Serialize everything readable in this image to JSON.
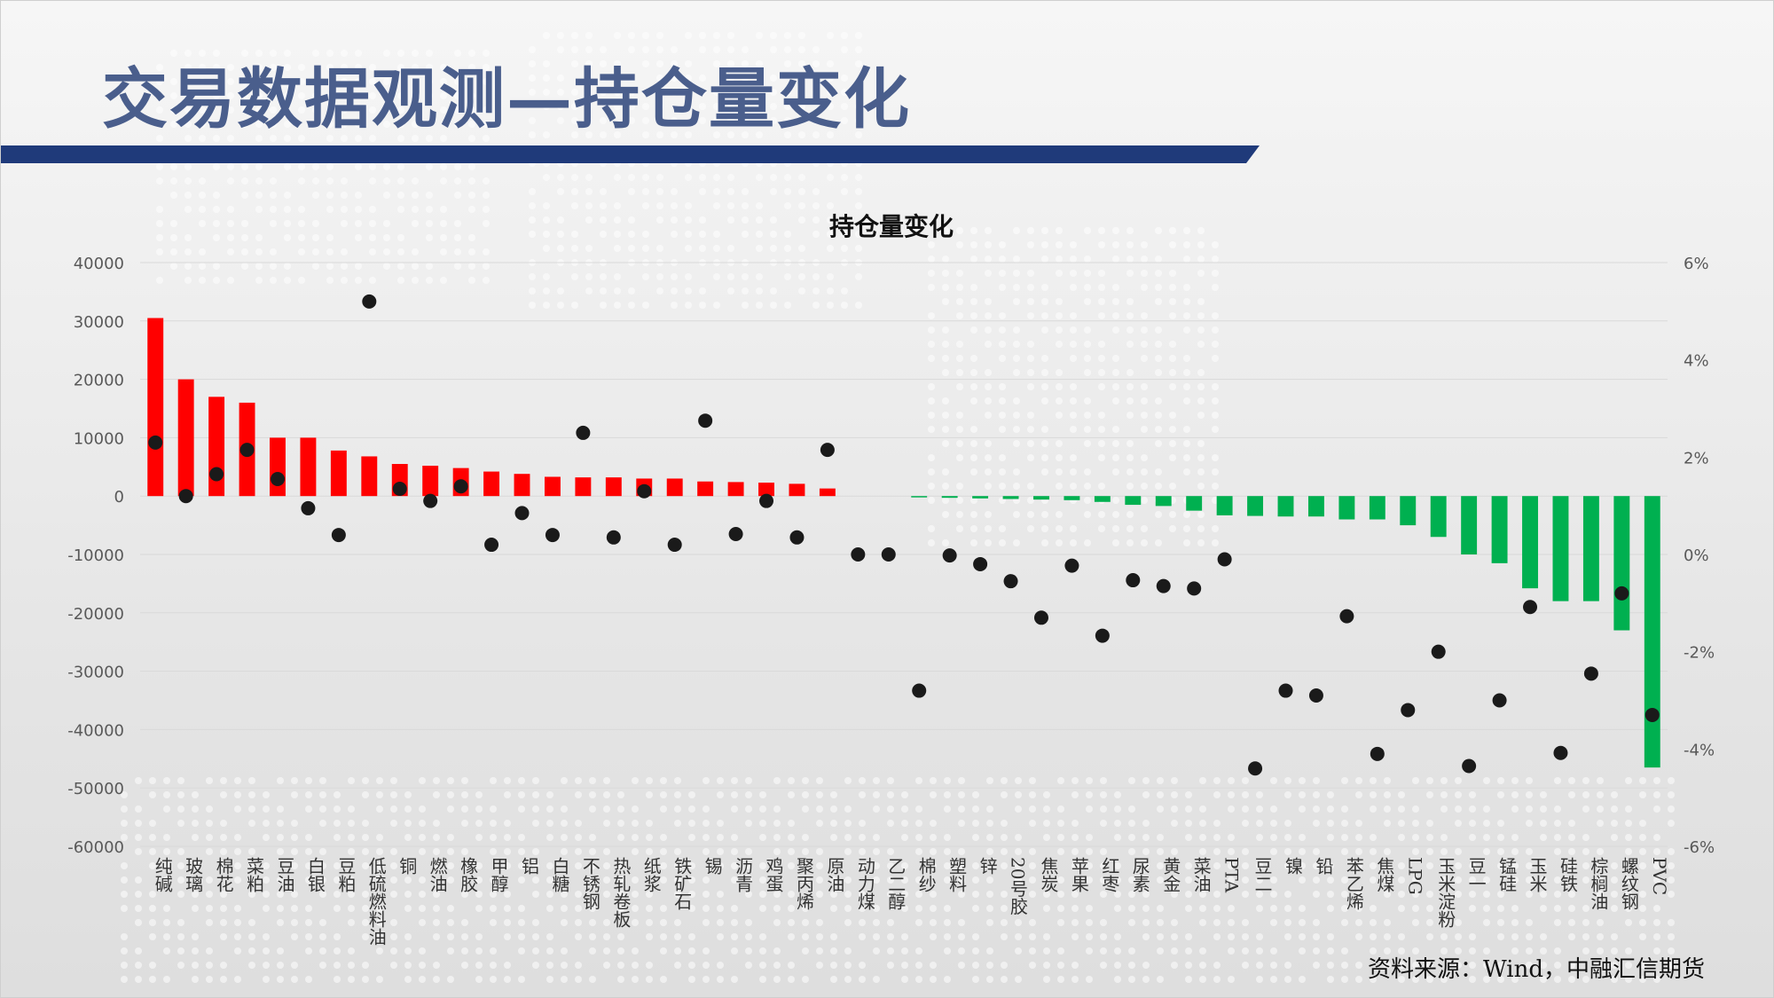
{
  "slide": {
    "title": "交易数据观测—持仓量变化",
    "source": "资料来源：Wind，中融汇信期货"
  },
  "colors": {
    "title": "#4a5e8c",
    "title_bar": "#1f3a7a",
    "positive_bar": "#ff0000",
    "negative_bar": "#00b050",
    "dot": "#1a1a1a",
    "grid": "#d9d9d9",
    "axis_text": "#595959"
  },
  "chart_data": {
    "type": "bar",
    "title": "持仓量变化",
    "ylim": [
      -60000,
      40000
    ],
    "y2lim": [
      -6,
      6
    ],
    "y_ticks": [
      "40000",
      "30000",
      "20000",
      "10000",
      "0",
      "-10000",
      "-20000",
      "-30000",
      "-40000",
      "-50000",
      "-60000"
    ],
    "y2_ticks": [
      "6%",
      "4%",
      "2%",
      "0%",
      "-2%",
      "-4%",
      "-6%"
    ],
    "grid": true,
    "categories": [
      "纯碱",
      "玻璃",
      "棉花",
      "菜粕",
      "豆油",
      "白银",
      "豆粕",
      "低硫燃料油",
      "铜",
      "燃油",
      "橡胶",
      "甲醇",
      "铝",
      "白糖",
      "不锈钢",
      "热轧卷板",
      "纸浆",
      "铁矿石",
      "锡",
      "沥青",
      "鸡蛋",
      "聚丙烯",
      "原油",
      "动力煤",
      "乙二醇",
      "棉纱",
      "塑料",
      "锌",
      "20号胶",
      "焦炭",
      "苹果",
      "红枣",
      "尿素",
      "黄金",
      "菜油",
      "PTA",
      "豆二",
      "镍",
      "铅",
      "苯乙烯",
      "焦煤",
      "LPG",
      "玉米淀粉",
      "豆一",
      "锰硅",
      "玉米",
      "硅铁",
      "棕榈油",
      "螺纹钢",
      "PVC"
    ],
    "series": [
      {
        "axis": "left",
        "values": [
          30500,
          20000,
          17000,
          16000,
          10000,
          10000,
          7800,
          6800,
          5500,
          5200,
          4800,
          4200,
          3800,
          3300,
          3200,
          3200,
          3000,
          3000,
          2500,
          2400,
          2300,
          2100,
          1300,
          0,
          0,
          -200,
          -300,
          -400,
          -500,
          -600,
          -700,
          -1000,
          -1500,
          -1700,
          -2500,
          -3300,
          -3400,
          -3500,
          -3500,
          -4000,
          -4000,
          -5000,
          -7000,
          -10000,
          -11500,
          -15800,
          -18000,
          -18000,
          -23000,
          -46500
        ]
      },
      {
        "axis": "right",
        "values": [
          2.3,
          1.2,
          1.65,
          2.15,
          1.55,
          0.95,
          0.4,
          5.2,
          1.35,
          1.1,
          1.4,
          0.2,
          0.85,
          0.4,
          2.5,
          0.35,
          1.3,
          0.2,
          2.75,
          0.42,
          1.1,
          0.35,
          2.15,
          0.0,
          0.0,
          -2.8,
          -0.02,
          -0.2,
          -0.55,
          -1.3,
          -0.23,
          -1.67,
          -0.53,
          -0.65,
          -0.7,
          -0.1,
          -4.4,
          -2.8,
          -2.9,
          -1.27,
          -4.1,
          -3.2,
          -2.0,
          -4.35,
          -3.0,
          -1.08,
          -4.08,
          -2.45,
          -0.8,
          -3.3
        ]
      }
    ]
  }
}
